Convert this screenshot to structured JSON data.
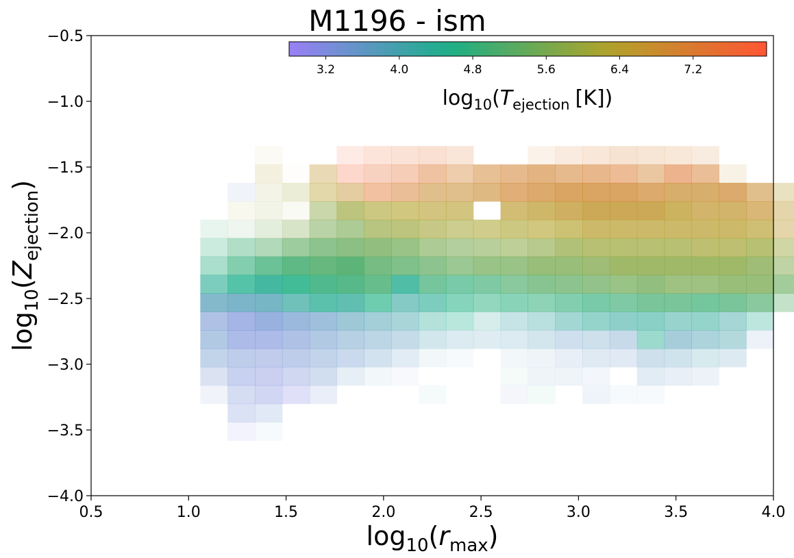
{
  "chart_data": {
    "type": "heatmap",
    "title": "M1196 - ism",
    "xlabel": {
      "prefix": "log",
      "sub": "10",
      "open": "(",
      "var": "r",
      "varsub": "max",
      "close": ")"
    },
    "ylabel": {
      "prefix": "log",
      "sub": "10",
      "open": "(",
      "var": "Z",
      "varsub": "ejection",
      "close": ")"
    },
    "xlim": [
      0.5,
      4.0
    ],
    "ylim": [
      -4.0,
      -0.5
    ],
    "x_ticks": [
      "0.5",
      "1.0",
      "1.5",
      "2.0",
      "2.5",
      "3.0",
      "3.5",
      "4.0"
    ],
    "y_ticks": [
      "−4.0",
      "−3.5",
      "−3.0",
      "−2.5",
      "−2.0",
      "−1.5",
      "−1.0",
      "−0.5"
    ],
    "x_bins": {
      "start": 0.78,
      "width": 0.14,
      "count": 21
    },
    "y_bins": {
      "start": -3.58,
      "width": 0.14,
      "count": 18
    },
    "cells_note": "each row: y-bin index (from bottom), first x-bin index, list of [log10 T, density 0-1]",
    "cells": [
      [
        0,
        3,
        [
          [
            3.2,
            0.1
          ],
          [
            3.6,
            0.05
          ]
        ]
      ],
      [
        1,
        3,
        [
          [
            3.3,
            0.25
          ],
          [
            3.4,
            0.2
          ]
        ]
      ],
      [
        2,
        2,
        [
          [
            3.4,
            0.1
          ],
          [
            3.3,
            0.3
          ],
          [
            3.2,
            0.35
          ],
          [
            3.1,
            0.25
          ],
          [
            3.4,
            0.15
          ]
        ]
      ],
      [
        2,
        10,
        [
          [
            4.0,
            0.05
          ],
          [
            0,
            0
          ],
          [
            0,
            0
          ],
          [
            3.3,
            0.08
          ],
          [
            4.5,
            0.05
          ],
          [
            0,
            0
          ],
          [
            3.5,
            0.1
          ],
          [
            3.6,
            0.05
          ],
          [
            3.6,
            0.05
          ]
        ]
      ],
      [
        3,
        2,
        [
          [
            3.4,
            0.25
          ],
          [
            3.3,
            0.4
          ],
          [
            3.2,
            0.4
          ],
          [
            3.3,
            0.35
          ],
          [
            3.5,
            0.3
          ],
          [
            3.6,
            0.15
          ],
          [
            3.7,
            0.08
          ],
          [
            3.5,
            0.05
          ]
        ]
      ],
      [
        3,
        13,
        [
          [
            4.6,
            0.05
          ],
          [
            3.6,
            0.1
          ],
          [
            3.7,
            0.1
          ],
          [
            3.5,
            0.08
          ],
          [
            0,
            0
          ],
          [
            3.6,
            0.18
          ],
          [
            3.5,
            0.15
          ],
          [
            3.4,
            0.12
          ]
        ]
      ],
      [
        4,
        2,
        [
          [
            3.5,
            0.4
          ],
          [
            3.4,
            0.45
          ],
          [
            3.3,
            0.45
          ],
          [
            3.4,
            0.45
          ],
          [
            3.5,
            0.4
          ],
          [
            3.5,
            0.35
          ],
          [
            3.6,
            0.28
          ],
          [
            3.6,
            0.18
          ],
          [
            3.6,
            0.08
          ],
          [
            3.7,
            0.05
          ]
        ]
      ],
      [
        4,
        13,
        [
          [
            3.6,
            0.08
          ],
          [
            3.7,
            0.1
          ],
          [
            3.5,
            0.15
          ],
          [
            3.6,
            0.2
          ],
          [
            3.5,
            0.2
          ],
          [
            3.7,
            0.3
          ],
          [
            3.8,
            0.28
          ],
          [
            3.9,
            0.22
          ],
          [
            3.7,
            0.2
          ]
        ]
      ],
      [
        5,
        2,
        [
          [
            3.5,
            0.5
          ],
          [
            3.3,
            0.6
          ],
          [
            3.3,
            0.6
          ],
          [
            3.4,
            0.55
          ],
          [
            3.5,
            0.5
          ],
          [
            3.6,
            0.45
          ],
          [
            3.7,
            0.4
          ],
          [
            3.7,
            0.35
          ],
          [
            3.9,
            0.25
          ],
          [
            3.8,
            0.2
          ],
          [
            3.8,
            0.18
          ]
        ]
      ],
      [
        5,
        13,
        [
          [
            3.8,
            0.2
          ],
          [
            3.8,
            0.25
          ],
          [
            3.6,
            0.3
          ],
          [
            3.7,
            0.3
          ],
          [
            3.6,
            0.35
          ],
          [
            4.4,
            0.45
          ],
          [
            3.8,
            0.5
          ],
          [
            3.9,
            0.45
          ],
          [
            4.0,
            0.4
          ],
          [
            3.6,
            0.12
          ]
        ]
      ],
      [
        6,
        2,
        [
          [
            3.4,
            0.55
          ],
          [
            3.3,
            0.65
          ],
          [
            3.4,
            0.7
          ],
          [
            3.5,
            0.65
          ],
          [
            3.6,
            0.6
          ],
          [
            3.8,
            0.55
          ],
          [
            3.9,
            0.5
          ],
          [
            4.0,
            0.45
          ],
          [
            4.3,
            0.35
          ],
          [
            4.5,
            0.3
          ],
          [
            4.2,
            0.2
          ]
        ]
      ],
      [
        6,
        13,
        [
          [
            4.0,
            0.3
          ],
          [
            4.1,
            0.35
          ],
          [
            4.2,
            0.45
          ],
          [
            4.3,
            0.5
          ],
          [
            4.2,
            0.55
          ],
          [
            4.3,
            0.55
          ],
          [
            4.2,
            0.5
          ],
          [
            4.3,
            0.5
          ],
          [
            4.1,
            0.45
          ],
          [
            4.4,
            0.3
          ]
        ]
      ],
      [
        7,
        2,
        [
          [
            3.8,
            0.7
          ],
          [
            3.8,
            0.75
          ],
          [
            3.9,
            0.75
          ],
          [
            4.2,
            0.7
          ],
          [
            4.4,
            0.75
          ],
          [
            4.3,
            0.75
          ],
          [
            4.6,
            0.65
          ],
          [
            4.2,
            0.6
          ],
          [
            4.4,
            0.6
          ],
          [
            4.6,
            0.55
          ],
          [
            4.7,
            0.5
          ]
        ]
      ],
      [
        7,
        13,
        [
          [
            4.7,
            0.55
          ],
          [
            4.8,
            0.55
          ],
          [
            4.8,
            0.6
          ],
          [
            4.8,
            0.65
          ],
          [
            4.9,
            0.65
          ],
          [
            5.0,
            0.7
          ],
          [
            5.0,
            0.7
          ],
          [
            4.9,
            0.7
          ],
          [
            5.0,
            0.7
          ],
          [
            5.1,
            0.65
          ],
          [
            5.2,
            0.35
          ]
        ]
      ],
      [
        8,
        2,
        [
          [
            4.4,
            0.6
          ],
          [
            4.5,
            0.75
          ],
          [
            4.4,
            0.85
          ],
          [
            4.6,
            0.85
          ],
          [
            4.8,
            0.85
          ],
          [
            4.9,
            0.85
          ],
          [
            5.0,
            0.8
          ],
          [
            4.4,
            0.8
          ],
          [
            4.9,
            0.7
          ],
          [
            4.8,
            0.65
          ],
          [
            4.9,
            0.65
          ]
        ]
      ],
      [
        8,
        13,
        [
          [
            5.1,
            0.65
          ],
          [
            5.2,
            0.7
          ],
          [
            5.3,
            0.7
          ],
          [
            5.4,
            0.7
          ],
          [
            5.5,
            0.7
          ],
          [
            5.5,
            0.75
          ],
          [
            5.6,
            0.7
          ],
          [
            5.6,
            0.7
          ],
          [
            5.6,
            0.75
          ],
          [
            5.6,
            0.75
          ],
          [
            5.4,
            0.6
          ],
          [
            5.0,
            0.1
          ]
        ]
      ],
      [
        9,
        2,
        [
          [
            4.7,
            0.4
          ],
          [
            4.8,
            0.6
          ],
          [
            4.9,
            0.75
          ],
          [
            5.0,
            0.85
          ],
          [
            5.1,
            0.85
          ],
          [
            5.1,
            0.9
          ],
          [
            5.2,
            0.8
          ],
          [
            5.2,
            0.75
          ],
          [
            5.3,
            0.7
          ],
          [
            5.4,
            0.65
          ],
          [
            5.5,
            0.7
          ]
        ]
      ],
      [
        9,
        13,
        [
          [
            5.5,
            0.7
          ],
          [
            5.6,
            0.75
          ],
          [
            5.6,
            0.75
          ],
          [
            5.7,
            0.75
          ],
          [
            5.8,
            0.8
          ],
          [
            5.8,
            0.8
          ],
          [
            5.8,
            0.8
          ],
          [
            5.8,
            0.8
          ],
          [
            5.8,
            0.8
          ],
          [
            5.7,
            0.75
          ],
          [
            5.7,
            0.5
          ],
          [
            5.3,
            0.15
          ]
        ]
      ],
      [
        10,
        2,
        [
          [
            4.8,
            0.25
          ],
          [
            4.9,
            0.4
          ],
          [
            5.2,
            0.45
          ],
          [
            5.3,
            0.6
          ],
          [
            5.3,
            0.7
          ],
          [
            5.4,
            0.75
          ],
          [
            5.5,
            0.75
          ],
          [
            5.5,
            0.7
          ],
          [
            5.6,
            0.6
          ],
          [
            5.6,
            0.55
          ],
          [
            5.7,
            0.55
          ]
        ]
      ],
      [
        10,
        13,
        [
          [
            5.8,
            0.55
          ],
          [
            5.8,
            0.6
          ],
          [
            5.9,
            0.7
          ],
          [
            6.0,
            0.7
          ],
          [
            6.0,
            0.7
          ],
          [
            6.0,
            0.7
          ],
          [
            6.0,
            0.7
          ],
          [
            6.1,
            0.7
          ],
          [
            6.1,
            0.7
          ],
          [
            6.0,
            0.7
          ],
          [
            6.0,
            0.45
          ]
        ]
      ],
      [
        11,
        2,
        [
          [
            4.9,
            0.12
          ],
          [
            5.2,
            0.1
          ],
          [
            5.6,
            0.2
          ],
          [
            5.7,
            0.3
          ],
          [
            5.6,
            0.5
          ],
          [
            5.6,
            0.6
          ],
          [
            5.9,
            0.65
          ],
          [
            6.0,
            0.65
          ],
          [
            6.1,
            0.6
          ],
          [
            6.1,
            0.55
          ],
          [
            6.2,
            0.55
          ]
        ]
      ],
      [
        11,
        13,
        [
          [
            6.2,
            0.6
          ],
          [
            6.3,
            0.6
          ],
          [
            6.3,
            0.65
          ],
          [
            6.4,
            0.7
          ],
          [
            6.4,
            0.7
          ],
          [
            6.4,
            0.7
          ],
          [
            6.4,
            0.7
          ],
          [
            6.4,
            0.7
          ],
          [
            6.4,
            0.7
          ],
          [
            6.4,
            0.65
          ],
          [
            6.5,
            0.4
          ]
        ]
      ],
      [
        12,
        3,
        [
          [
            6.1,
            0.08
          ],
          [
            5.9,
            0.12
          ],
          [
            6.0,
            0.05
          ],
          [
            5.8,
            0.45
          ],
          [
            6.0,
            0.65
          ],
          [
            6.2,
            0.6
          ],
          [
            6.3,
            0.6
          ],
          [
            6.4,
            0.6
          ],
          [
            6.4,
            0.6
          ]
        ]
      ],
      [
        12,
        13,
        [
          [
            6.5,
            0.65
          ],
          [
            6.5,
            0.7
          ],
          [
            6.6,
            0.75
          ],
          [
            6.6,
            0.8
          ],
          [
            6.6,
            0.8
          ],
          [
            6.6,
            0.8
          ],
          [
            6.5,
            0.75
          ],
          [
            6.6,
            0.7
          ],
          [
            6.6,
            0.7
          ],
          [
            6.7,
            0.65
          ],
          [
            6.5,
            0.4
          ]
        ]
      ],
      [
        13,
        3,
        [
          [
            3.3,
            0.1
          ],
          [
            6.0,
            0.12
          ],
          [
            6.1,
            0.2
          ],
          [
            6.4,
            0.4
          ],
          [
            6.7,
            0.45
          ],
          [
            7.3,
            0.45
          ],
          [
            7.1,
            0.5
          ],
          [
            6.8,
            0.55
          ],
          [
            6.8,
            0.55
          ],
          [
            6.8,
            0.6
          ],
          [
            7.0,
            0.65
          ]
        ]
      ],
      [
        13,
        14,
        [
          [
            6.9,
            0.7
          ],
          [
            6.9,
            0.75
          ],
          [
            6.9,
            0.75
          ],
          [
            6.9,
            0.75
          ],
          [
            6.9,
            0.7
          ],
          [
            6.8,
            0.7
          ],
          [
            6.8,
            0.7
          ],
          [
            6.9,
            0.7
          ],
          [
            6.8,
            0.55
          ],
          [
            6.4,
            0.3
          ]
        ]
      ],
      [
        14,
        4,
        [
          [
            6.4,
            0.15
          ],
          [
            6.4,
            0.02
          ],
          [
            6.6,
            0.35
          ],
          [
            7.8,
            0.25
          ],
          [
            7.5,
            0.3
          ],
          [
            7.4,
            0.35
          ],
          [
            7.2,
            0.45
          ],
          [
            7.0,
            0.4
          ],
          [
            7.0,
            0.5
          ],
          [
            7.0,
            0.55
          ]
        ]
      ],
      [
        14,
        14,
        [
          [
            7.0,
            0.6
          ],
          [
            7.0,
            0.55
          ],
          [
            7.1,
            0.55
          ],
          [
            7.2,
            0.5
          ],
          [
            7.0,
            0.45
          ],
          [
            7.3,
            0.55
          ],
          [
            7.1,
            0.5
          ],
          [
            6.6,
            0.12
          ]
        ]
      ],
      [
        15,
        4,
        [
          [
            6.4,
            0.05
          ],
          [
            0,
            0
          ],
          [
            0,
            0
          ],
          [
            7.8,
            0.12
          ],
          [
            7.6,
            0.18
          ],
          [
            7.4,
            0.2
          ],
          [
            7.4,
            0.22
          ],
          [
            7.3,
            0.18
          ]
        ]
      ],
      [
        15,
        14,
        [
          [
            7.1,
            0.1
          ],
          [
            7.2,
            0.15
          ],
          [
            7.2,
            0.18
          ],
          [
            7.1,
            0.22
          ],
          [
            7.1,
            0.2
          ],
          [
            7.1,
            0.18
          ],
          [
            7.0,
            0.15
          ]
        ]
      ]
    ],
    "colorbar": {
      "label": {
        "prefix": "log",
        "sub": "10",
        "open": "(",
        "var": "T",
        "varsub": "ejection",
        "unit": "[K]",
        "close": ")"
      },
      "range": [
        2.8,
        8.0
      ],
      "ticks": [
        3.2,
        4.0,
        4.8,
        5.6,
        6.4,
        7.2
      ],
      "tick_labels": [
        "3.2",
        "4.0",
        "4.8",
        "5.6",
        "6.4",
        "7.2"
      ],
      "colors": [
        "#9a7ff7",
        "#1ab088",
        "#b0a32a",
        "#ff5533"
      ]
    }
  }
}
